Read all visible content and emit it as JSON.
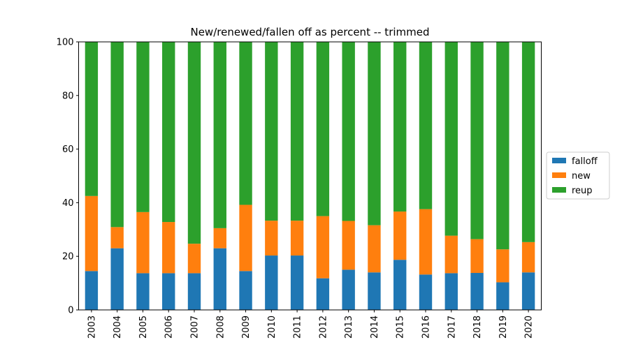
{
  "chart_data": {
    "type": "bar",
    "stacked": true,
    "title": "New/renewed/fallen off as percent -- trimmed",
    "xlabel": "",
    "ylabel": "",
    "ylim": [
      0,
      100
    ],
    "yticks": [
      0,
      20,
      40,
      60,
      80,
      100
    ],
    "grid": false,
    "legend_position": "right",
    "categories": [
      "2003",
      "2004",
      "2005",
      "2006",
      "2007",
      "2008",
      "2009",
      "2010",
      "2011",
      "2012",
      "2013",
      "2014",
      "2015",
      "2016",
      "2017",
      "2018",
      "2019",
      "2020"
    ],
    "series": [
      {
        "name": "falloff",
        "color": "#1f77b4",
        "values": [
          14.5,
          23.0,
          13.7,
          13.7,
          13.7,
          23.0,
          14.5,
          20.3,
          20.3,
          11.8,
          15.0,
          14.0,
          18.7,
          13.2,
          13.7,
          13.8,
          10.3,
          14.0
        ]
      },
      {
        "name": "new",
        "color": "#ff7f0e",
        "values": [
          28.0,
          7.9,
          22.8,
          19.1,
          11.0,
          7.5,
          24.7,
          13.0,
          13.0,
          23.2,
          18.2,
          17.6,
          18.0,
          24.4,
          14.0,
          12.6,
          12.3,
          11.3
        ]
      },
      {
        "name": "reup",
        "color": "#2ca02c",
        "values": [
          57.5,
          69.1,
          63.5,
          67.2,
          75.3,
          69.5,
          60.8,
          66.7,
          66.7,
          65.0,
          66.8,
          68.4,
          63.3,
          62.4,
          72.3,
          73.6,
          77.4,
          74.7
        ]
      }
    ]
  }
}
